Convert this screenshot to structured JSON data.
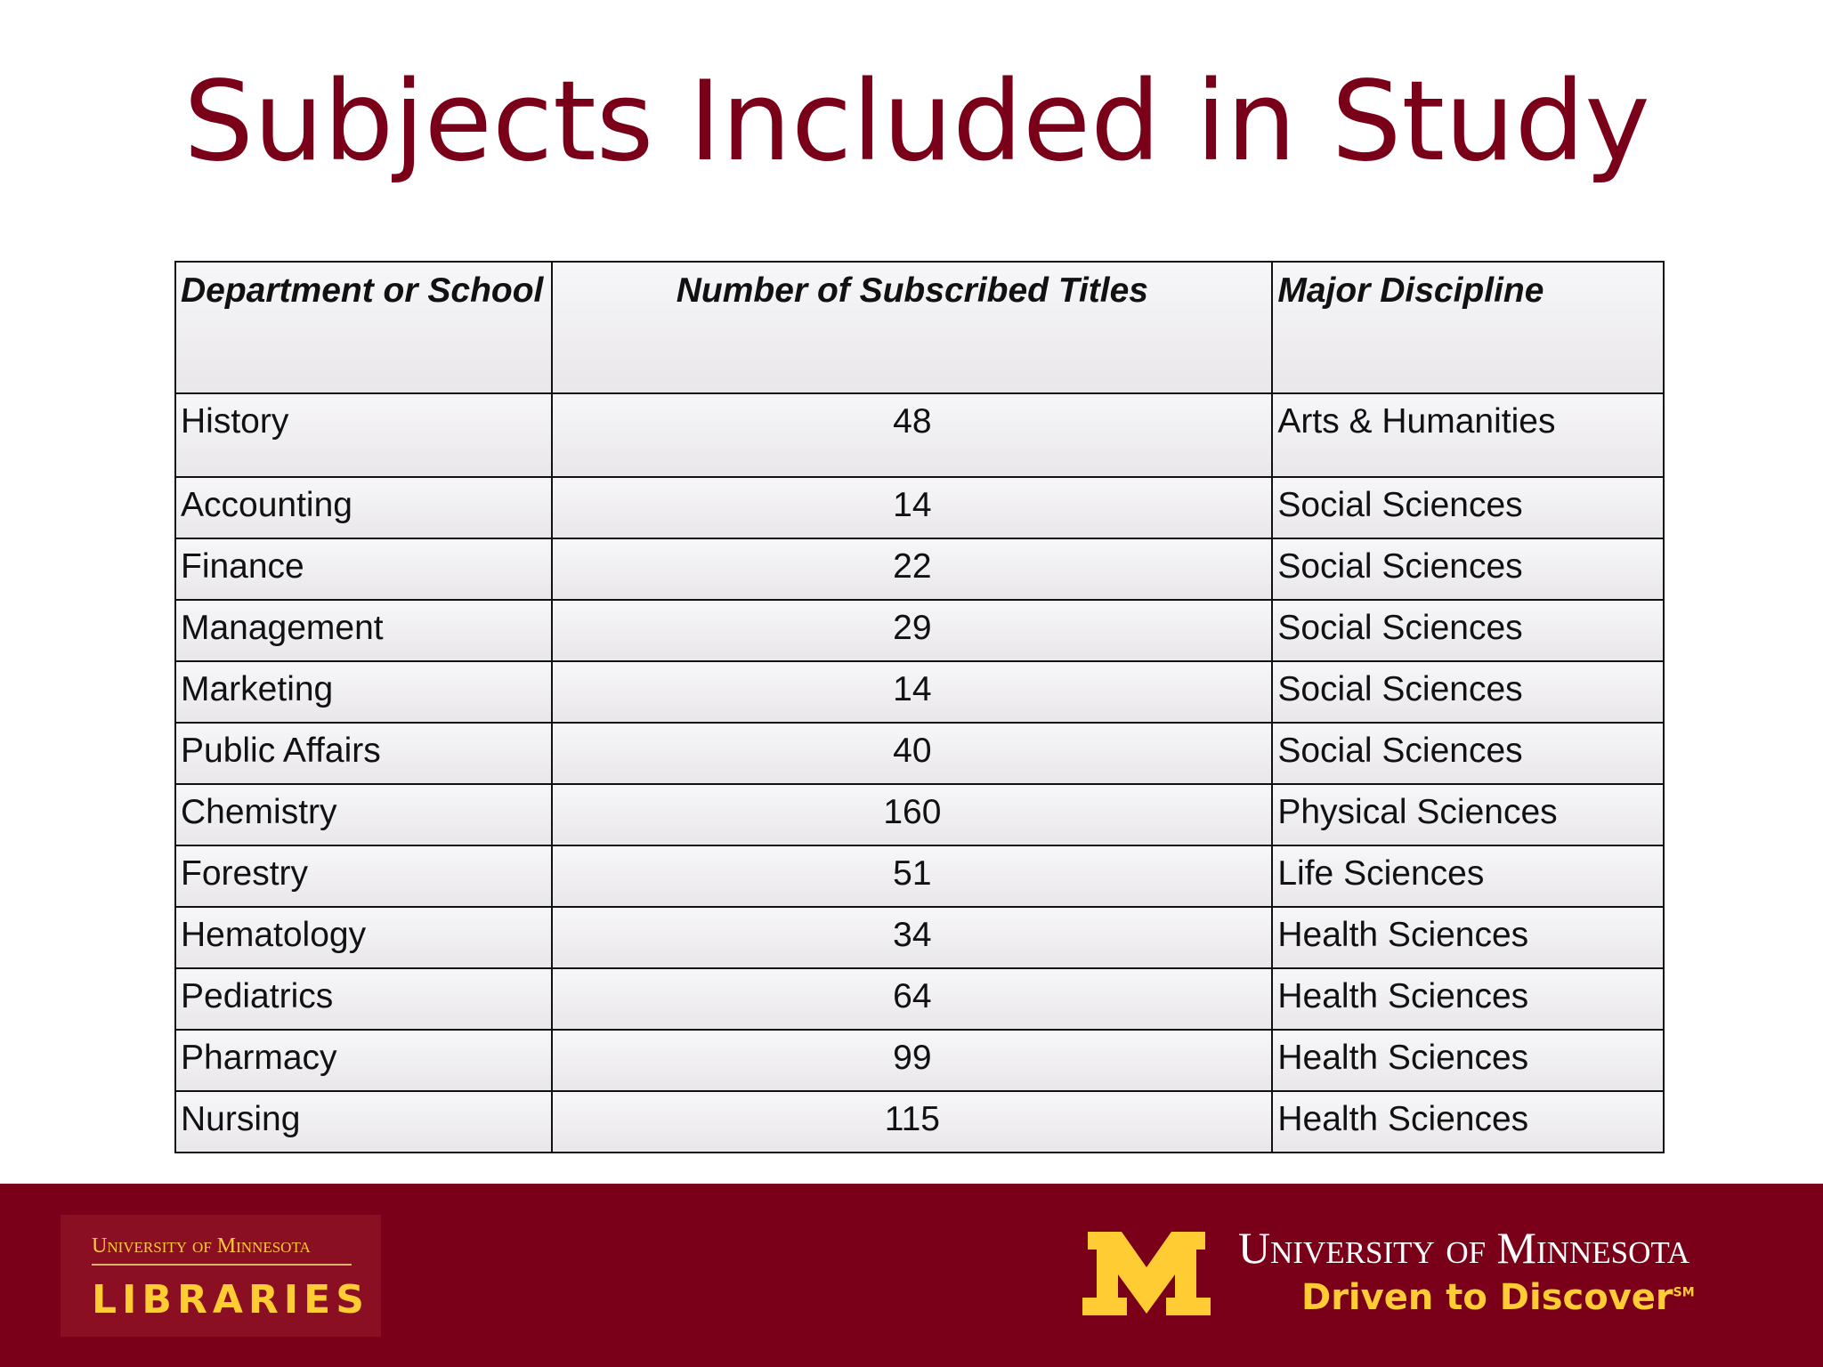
{
  "header": {
    "title": "Subjects Included in Study"
  },
  "table": {
    "columns": [
      "Department or School",
      "Number of Subscribed Titles",
      "Major Discipline"
    ],
    "rows": [
      [
        "History",
        "48",
        "Arts & Humanities"
      ],
      [
        "Accounting",
        "14",
        "Social Sciences"
      ],
      [
        "Finance",
        "22",
        "Social Sciences"
      ],
      [
        "Management",
        "29",
        "Social Sciences"
      ],
      [
        "Marketing",
        "14",
        "Social Sciences"
      ],
      [
        "Public Affairs",
        "40",
        "Social Sciences"
      ],
      [
        "Chemistry",
        "160",
        "Physical Sciences"
      ],
      [
        "Forestry",
        "51",
        "Life Sciences"
      ],
      [
        "Hematology",
        "34",
        "Health Sciences"
      ],
      [
        "Pediatrics",
        "64",
        "Health Sciences"
      ],
      [
        "Pharmacy",
        "99",
        "Health Sciences"
      ],
      [
        "Nursing",
        "115",
        "Health Sciences"
      ]
    ]
  },
  "footer": {
    "left_line1": "University of Minnesota",
    "left_line2": "LIBRARIES",
    "right_line1": "University of Minnesota",
    "right_line2": "Driven to Discover",
    "right_mark": "SM"
  }
}
